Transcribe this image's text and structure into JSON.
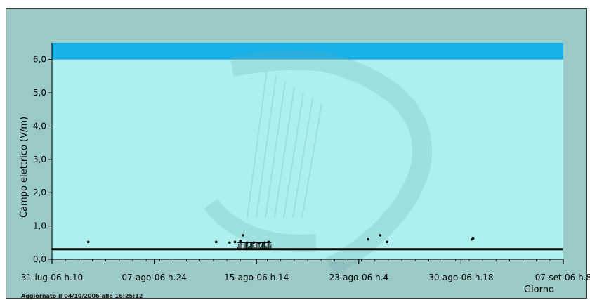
{
  "chart_data": {
    "type": "scatter",
    "title": "",
    "xlabel": "Giorno",
    "ylabel": "Campo elettrico (V/m)",
    "ylim": [
      0,
      6.5
    ],
    "limit_band": [
      6.0,
      6.5
    ],
    "y_ticks": [
      "0,0",
      "1,0",
      "2,0",
      "3,0",
      "4,0",
      "5,0",
      "6,0"
    ],
    "x_ticks": [
      "31-lug-06 h.10",
      "07-ago-06 h.24",
      "15-ago-06 h.14",
      "23-ago-06 h.4",
      "30-ago-06 h.18",
      "07-set-06 h.8"
    ],
    "x_range_days": [
      0,
      38
    ],
    "baseline": 0.3,
    "points_days": [
      [
        2.7,
        0.52
      ],
      [
        12.2,
        0.52
      ],
      [
        13.2,
        0.5
      ],
      [
        13.6,
        0.52
      ],
      [
        14.0,
        0.55
      ],
      [
        14.2,
        0.72
      ],
      [
        14.5,
        0.5
      ],
      [
        15.0,
        0.5
      ],
      [
        15.4,
        0.48
      ],
      [
        15.8,
        0.5
      ],
      [
        16.1,
        0.52
      ],
      [
        23.5,
        0.6
      ],
      [
        24.4,
        0.72
      ],
      [
        24.9,
        0.52
      ],
      [
        31.2,
        0.6
      ],
      [
        31.3,
        0.62
      ]
    ],
    "dense_cluster_days": [
      13.8,
      16.3
    ],
    "colors": {
      "plot_bg": "#aef0ee",
      "limit_band": "#1ab0ea",
      "panel_bg": "#9bc9c8",
      "points": "#000000",
      "grid": "#c9e9e8"
    }
  },
  "footer": {
    "updated": "Aggiornato il 04/10/2006 alle 16:25:12"
  }
}
